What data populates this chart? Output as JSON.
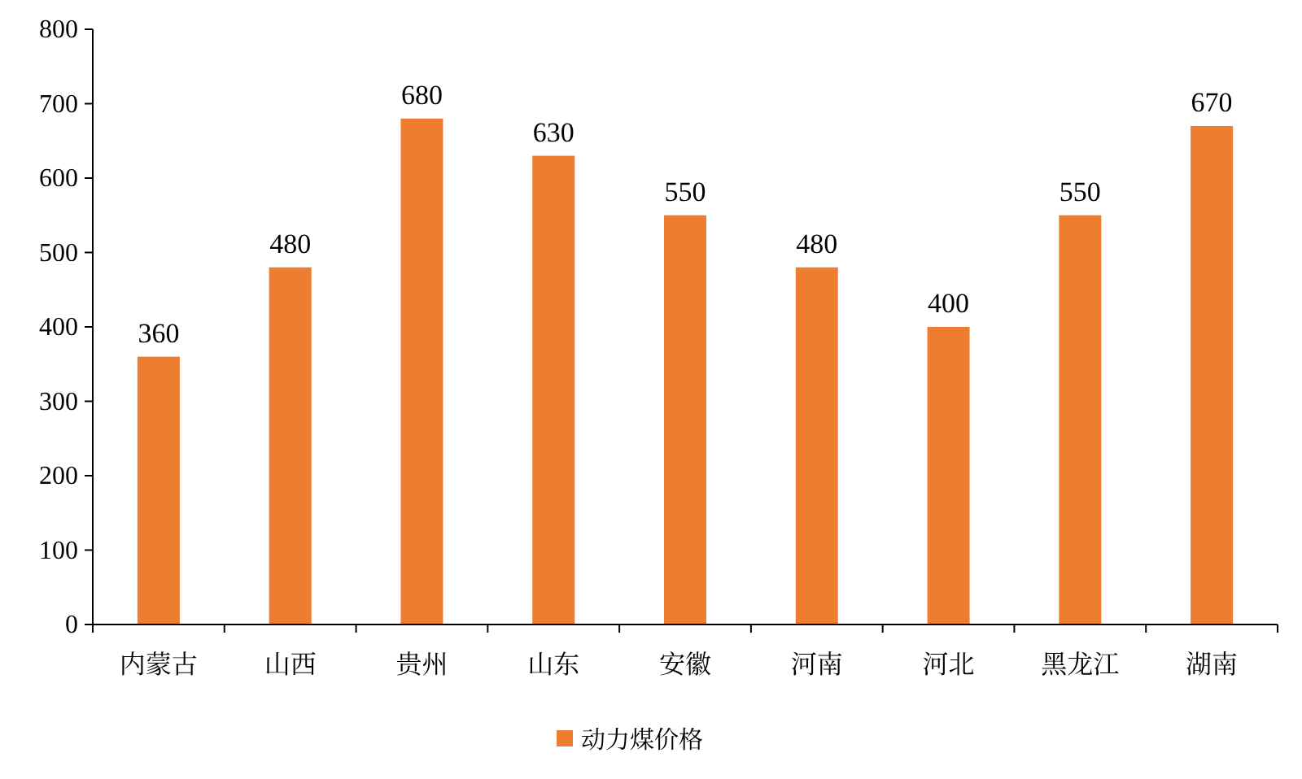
{
  "chart_data": {
    "type": "bar",
    "categories": [
      "内蒙古",
      "山西",
      "贵州",
      "山东",
      "安徽",
      "河南",
      "河北",
      "黑龙江",
      "湖南"
    ],
    "series": [
      {
        "name": "动力煤价格",
        "color": "#ed7d31",
        "values": [
          360,
          480,
          680,
          630,
          550,
          480,
          400,
          550,
          670
        ]
      }
    ],
    "ylim": [
      0,
      800
    ],
    "yticks": [
      0,
      100,
      200,
      300,
      400,
      500,
      600,
      700,
      800
    ],
    "data_labels": true,
    "legend": "bottom",
    "grid": false
  }
}
